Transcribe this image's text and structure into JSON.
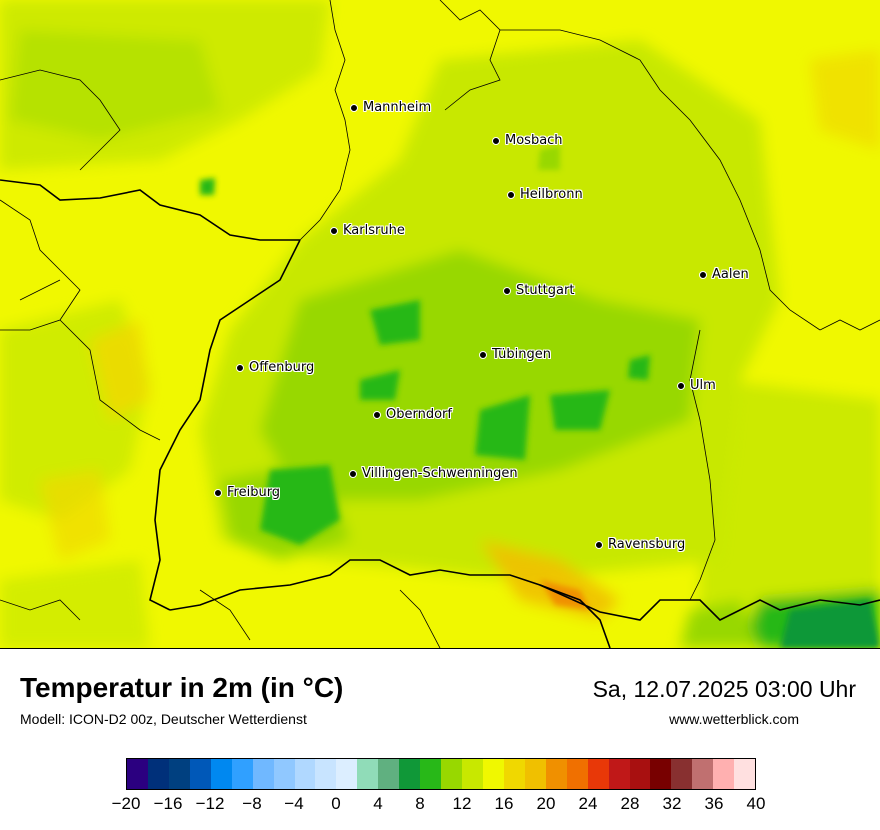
{
  "map": {
    "title": "Temperatur in 2m (in °C)",
    "model": "Modell: ICON-D2 00z, Deutscher Wetterdienst",
    "datetime": "Sa, 12.07.2025 03:00 Uhr",
    "website": "www.wetterblick.com",
    "cities": [
      {
        "name": "Mannheim"
      },
      {
        "name": "Mosbach"
      },
      {
        "name": "Heilbronn"
      },
      {
        "name": "Karlsruhe"
      },
      {
        "name": "Aalen"
      },
      {
        "name": "Stuttgart"
      },
      {
        "name": "Tübingen"
      },
      {
        "name": "Offenburg"
      },
      {
        "name": "Ulm"
      },
      {
        "name": "Oberndorf"
      },
      {
        "name": "Villingen-Schwenningen"
      },
      {
        "name": "Freiburg"
      },
      {
        "name": "Ravensburg"
      }
    ]
  },
  "legend": {
    "colors": [
      "#2b0080",
      "#00307a",
      "#004080",
      "#0058b8",
      "#0088f0",
      "#30a0ff",
      "#70b8ff",
      "#90c8ff",
      "#b0d8ff",
      "#c8e4ff",
      "#dceeff",
      "#90dcb8",
      "#60b080",
      "#109838",
      "#28b818",
      "#98d800",
      "#c8e800",
      "#f0f800",
      "#f0d800",
      "#f0c000",
      "#f09000",
      "#f07000",
      "#e83808",
      "#c01818",
      "#a81010",
      "#780000",
      "#883030",
      "#c07070",
      "#ffb0b0",
      "#ffe0e0"
    ],
    "ticks": [
      "−20",
      "−16",
      "−12",
      "−8",
      "−4",
      "0",
      "4",
      "8",
      "12",
      "16",
      "20",
      "24",
      "28",
      "32",
      "36",
      "40"
    ]
  }
}
